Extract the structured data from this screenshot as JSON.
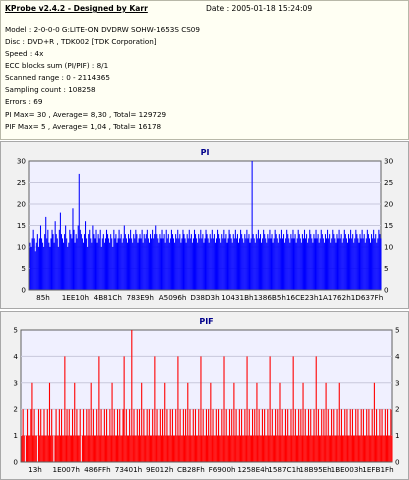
{
  "header": {
    "app_title": "KProbe v2.4.2 - Designed by Karr",
    "date": "Date : 2005-01-18 15:24:09",
    "info_lines": [
      "Model : 2-0-0-0 G:LITE-ON DVDRW SOHW-1653S CS09",
      "Disc : DVD+R , TDK002 [TDK Corporation]",
      "Speed : 4x",
      "ECC blocks sum (PI/PIF) : 8/1",
      "Scanned range : 0 - 2114365",
      "Sampling count : 108258",
      "Errors : 69",
      "PI Max= 30 , Average= 8,30 , Total= 129729",
      "PIF Max= 5 , Average= 1,04 , Total= 16178"
    ]
  },
  "colors": {
    "plot_bg": "#f0f0ff",
    "grid": "#c8c8dc",
    "pi_series": "#0000ff",
    "pif_series": "#ff0000",
    "title": "#00008b"
  },
  "chart_data": [
    {
      "type": "bar",
      "title": "PI",
      "ylim": [
        0,
        30
      ],
      "y_ticks": [
        0,
        5,
        10,
        15,
        20,
        25,
        30
      ],
      "x_tick_labels": [
        "85h",
        "1EE10h",
        "4B81Ch",
        "783E9h",
        "A5096h",
        "D38D3h",
        "10431Bh",
        "1386B5h",
        "16CE23h",
        "1A1762h",
        "1D637Fh"
      ],
      "grid": true,
      "series": [
        {
          "color": "#0000ff",
          "values": [
            11,
            10,
            12,
            14,
            12,
            9,
            11,
            13,
            10,
            12,
            15,
            12,
            11,
            10,
            13,
            17,
            12,
            14,
            11,
            10,
            12,
            14,
            13,
            11,
            16,
            13,
            12,
            10,
            14,
            18,
            13,
            12,
            11,
            13,
            15,
            12,
            10,
            11,
            14,
            13,
            12,
            19,
            14,
            11,
            13,
            12,
            15,
            27,
            14,
            13,
            12,
            11,
            13,
            16,
            12,
            10,
            13,
            14,
            12,
            11,
            15,
            13,
            12,
            14,
            11,
            13,
            12,
            14,
            10,
            12,
            13,
            11,
            12,
            14,
            13,
            12,
            11,
            13,
            12,
            10,
            14,
            12,
            13,
            11,
            12,
            14,
            12,
            13,
            11,
            12,
            15,
            13,
            12,
            11,
            13,
            12,
            14,
            12,
            11,
            13,
            12,
            14,
            13,
            11,
            12,
            13,
            12,
            14,
            11,
            13,
            12,
            13,
            14,
            12,
            11,
            13,
            12,
            14,
            12,
            13,
            15,
            13,
            12,
            11,
            13,
            12,
            14,
            12,
            13,
            11,
            14,
            12,
            13,
            11,
            12,
            14,
            13,
            12,
            11,
            13,
            12,
            14,
            12,
            13,
            11,
            12,
            14,
            13,
            12,
            11,
            13,
            12,
            14,
            12,
            13,
            11,
            12,
            14,
            13,
            12,
            11,
            13,
            12,
            14,
            12,
            13,
            11,
            12,
            14,
            13,
            12,
            11,
            13,
            12,
            14,
            12,
            13,
            11,
            12,
            14,
            13,
            12,
            11,
            13,
            12,
            14,
            12,
            13,
            11,
            12,
            14,
            13,
            12,
            11,
            13,
            12,
            14,
            12,
            13,
            11,
            12,
            14,
            13,
            12,
            11,
            13,
            12,
            14,
            12,
            13,
            11,
            12,
            30,
            13,
            12,
            11,
            13,
            12,
            14,
            12,
            13,
            11,
            12,
            14,
            13,
            12,
            11,
            13,
            12,
            14,
            12,
            13,
            11,
            12,
            14,
            13,
            12,
            11,
            13,
            12,
            14,
            12,
            13,
            11,
            12,
            14,
            13,
            12,
            11,
            13,
            12,
            14,
            12,
            13,
            11,
            12,
            14,
            13,
            12,
            11,
            13,
            12,
            14,
            12,
            13,
            11,
            12,
            14,
            13,
            12,
            11,
            13,
            12,
            14,
            12,
            13,
            11,
            12,
            14,
            13,
            12,
            11,
            13,
            12,
            14,
            12,
            13,
            11,
            12,
            14,
            13,
            12,
            11,
            13,
            12,
            14,
            12,
            13,
            11,
            12,
            14,
            13,
            12,
            11,
            13,
            12,
            14,
            12,
            13,
            11,
            12,
            14,
            13,
            12,
            11,
            13,
            12,
            14,
            12,
            13,
            11,
            12,
            14,
            13,
            12,
            11,
            13,
            12,
            14,
            12,
            13,
            11,
            12,
            14,
            13,
            12
          ]
        }
      ]
    },
    {
      "type": "bar",
      "title": "PIF",
      "ylim": [
        0,
        5
      ],
      "y_ticks": [
        0,
        1,
        2,
        3,
        4,
        5
      ],
      "x_tick_labels": [
        "13h",
        "1E007h",
        "486FFh",
        "73401h",
        "9E012h",
        "CB28Fh",
        "F6900h",
        "1258E4h",
        "1587C1h",
        "18B95Eh",
        "1BE003h",
        "1EFB1Fh"
      ],
      "grid": true,
      "series": [
        {
          "color": "#ff0000",
          "values": [
            1,
            2,
            1,
            0,
            1,
            2,
            1,
            1,
            2,
            3,
            1,
            2,
            1,
            1,
            0,
            2,
            1,
            2,
            1,
            1,
            2,
            1,
            1,
            2,
            1,
            3,
            1,
            2,
            1,
            0,
            1,
            2,
            1,
            1,
            2,
            1,
            2,
            1,
            1,
            4,
            1,
            2,
            1,
            2,
            1,
            1,
            2,
            1,
            3,
            1,
            2,
            1,
            1,
            2,
            0,
            1,
            2,
            1,
            1,
            2,
            1,
            2,
            1,
            3,
            1,
            2,
            1,
            1,
            2,
            1,
            4,
            1,
            2,
            1,
            1,
            2,
            1,
            2,
            1,
            1,
            2,
            1,
            3,
            1,
            2,
            1,
            1,
            2,
            1,
            2,
            1,
            1,
            2,
            4,
            1,
            2,
            1,
            1,
            2,
            1,
            5,
            1,
            2,
            1,
            1,
            2,
            1,
            2,
            1,
            3,
            1,
            2,
            1,
            1,
            2,
            1,
            2,
            1,
            1,
            2,
            1,
            4,
            1,
            2,
            1,
            1,
            2,
            1,
            2,
            1,
            3,
            1,
            2,
            1,
            1,
            2,
            1,
            2,
            1,
            1,
            2,
            1,
            4,
            1,
            2,
            1,
            1,
            2,
            1,
            2,
            1,
            3,
            1,
            2,
            1,
            1,
            2,
            1,
            2,
            1,
            1,
            2,
            1,
            4,
            1,
            2,
            1,
            1,
            2,
            1,
            2,
            1,
            3,
            1,
            2,
            1,
            1,
            2,
            1,
            2,
            1,
            1,
            2,
            1,
            4,
            1,
            2,
            1,
            1,
            2,
            1,
            2,
            1,
            3,
            1,
            2,
            1,
            1,
            2,
            1,
            2,
            1,
            1,
            2,
            1,
            4,
            1,
            2,
            1,
            1,
            2,
            1,
            2,
            1,
            3,
            1,
            2,
            1,
            1,
            2,
            1,
            2,
            1,
            1,
            2,
            1,
            4,
            1,
            2,
            1,
            1,
            2,
            1,
            2,
            1,
            3,
            1,
            2,
            1,
            1,
            2,
            1,
            2,
            1,
            1,
            2,
            1,
            4,
            1,
            2,
            1,
            1,
            2,
            1,
            2,
            1,
            3,
            1,
            2,
            1,
            1,
            2,
            1,
            2,
            1,
            1,
            2,
            1,
            4,
            1,
            2,
            1,
            1,
            2,
            1,
            2,
            1,
            3,
            1,
            2,
            1,
            1,
            2,
            1,
            2,
            1,
            1,
            2,
            1,
            3,
            1,
            2,
            1,
            1,
            2,
            1,
            2,
            1,
            1,
            2,
            1,
            2,
            1,
            1,
            2,
            1,
            2,
            1,
            1,
            2,
            1,
            2,
            1,
            1,
            2,
            1,
            2,
            1,
            1,
            2,
            1,
            3,
            1,
            2,
            1,
            1,
            2,
            1,
            2,
            1,
            1,
            2,
            1,
            2,
            1,
            1,
            2,
            1
          ]
        }
      ]
    }
  ]
}
